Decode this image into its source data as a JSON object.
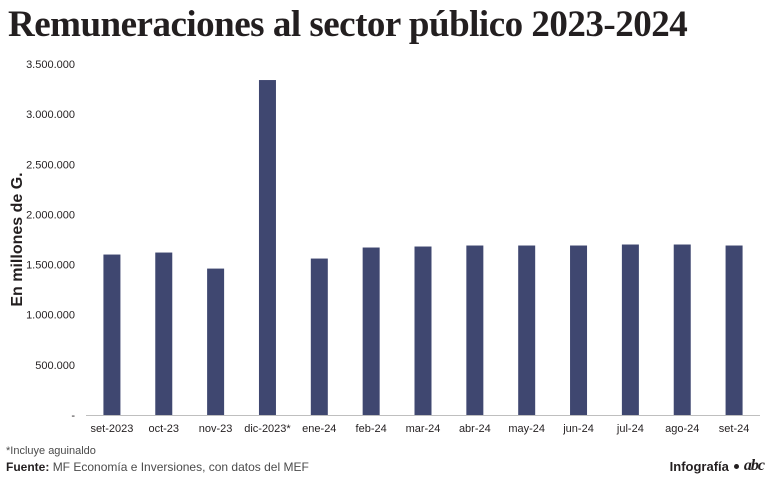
{
  "title": "Remuneraciones al sector público 2023-2024",
  "footnote": "*Incluye aguinaldo",
  "source": {
    "label": "Fuente:",
    "text": "MF Economía e Inversiones, con datos del MEF"
  },
  "credit": {
    "text": "Infografía",
    "logo": "abc"
  },
  "colors": {
    "bar": "#3f4770",
    "baseline": "#bfbfbf",
    "text": "#231f20"
  },
  "chart_data": {
    "type": "bar",
    "ylabel": "En millones de G.",
    "ylim": [
      0,
      3500000
    ],
    "yticks": [
      0,
      500000,
      1000000,
      1500000,
      2000000,
      2500000,
      3000000,
      3500000
    ],
    "ytick_labels": [
      "-",
      "500.000",
      "1.000.000",
      "1.500.000",
      "2.000.000",
      "2.500.000",
      "3.000.000",
      "3.500.000"
    ],
    "grid": false,
    "categories": [
      "set-2023",
      "oct-23",
      "nov-23",
      "dic-2023*",
      "ene-24",
      "feb-24",
      "mar-24",
      "abr-24",
      "may-24",
      "jun-24",
      "jul-24",
      "ago-24",
      "set-24"
    ],
    "values": [
      1600000,
      1620000,
      1460000,
      3340000,
      1560000,
      1670000,
      1680000,
      1690000,
      1690000,
      1690000,
      1700000,
      1700000,
      1690000
    ]
  }
}
